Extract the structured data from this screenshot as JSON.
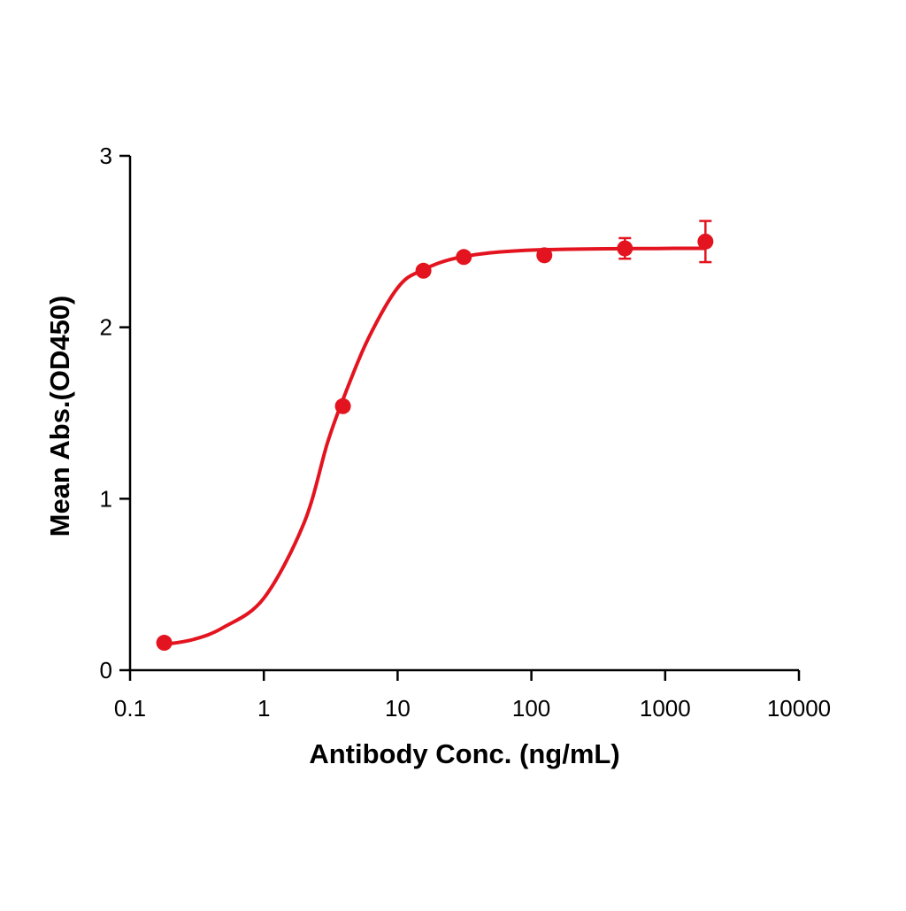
{
  "chart_data": {
    "type": "scatter",
    "x_label": "Antibody Conc. (ng/mL)",
    "y_label": "Mean Abs.(OD450)",
    "x_scale": "log",
    "xlim": [
      0.1,
      10000
    ],
    "xticks": [
      0.1,
      1,
      10,
      100,
      1000,
      10000
    ],
    "ylim": [
      0,
      3
    ],
    "yticks": [
      0,
      1,
      2,
      3
    ],
    "series": [
      {
        "color": "#e3141f",
        "x": [
          0.18,
          3.9,
          15.6,
          31.25,
          125,
          500,
          2000
        ],
        "values": [
          0.16,
          1.54,
          2.33,
          2.41,
          2.42,
          2.46,
          2.5
        ],
        "errors": [
          null,
          null,
          null,
          null,
          null,
          0.06,
          0.12
        ]
      }
    ],
    "curve": {
      "color": "#e3141f",
      "x": [
        0.18,
        0.3,
        0.5,
        1,
        2,
        3,
        4,
        6,
        10,
        15,
        30,
        100,
        1000,
        2000
      ],
      "values": [
        0.15,
        0.18,
        0.25,
        0.42,
        0.86,
        1.33,
        1.6,
        1.93,
        2.23,
        2.33,
        2.41,
        2.45,
        2.46,
        2.46
      ]
    }
  }
}
